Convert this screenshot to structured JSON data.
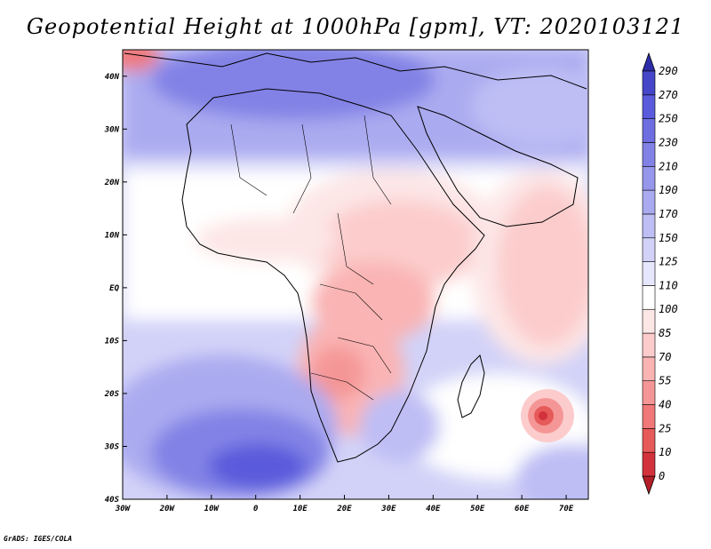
{
  "title": "Geopotential Height at 1000hPa [gpm], VT: 2020103121",
  "credit": "GrADS: IGES/COLA",
  "map": {
    "lon_range": [
      -30,
      75
    ],
    "lat_range": [
      -40,
      45
    ],
    "lon_ticks": [
      {
        "value": -30,
        "label": "30W"
      },
      {
        "value": -20,
        "label": "20W"
      },
      {
        "value": -10,
        "label": "10W"
      },
      {
        "value": 0,
        "label": "0"
      },
      {
        "value": 10,
        "label": "10E"
      },
      {
        "value": 20,
        "label": "20E"
      },
      {
        "value": 30,
        "label": "30E"
      },
      {
        "value": 40,
        "label": "40E"
      },
      {
        "value": 50,
        "label": "50E"
      },
      {
        "value": 60,
        "label": "60E"
      },
      {
        "value": 70,
        "label": "70E"
      }
    ],
    "lat_ticks": [
      {
        "value": 40,
        "label": "40N"
      },
      {
        "value": 30,
        "label": "30N"
      },
      {
        "value": 20,
        "label": "20N"
      },
      {
        "value": 10,
        "label": "10N"
      },
      {
        "value": 0,
        "label": "EQ"
      },
      {
        "value": -10,
        "label": "10S"
      },
      {
        "value": -20,
        "label": "20S"
      },
      {
        "value": -30,
        "label": "30S"
      },
      {
        "value": -40,
        "label": "40S"
      }
    ]
  },
  "colorbar": {
    "levels": [
      "0",
      "10",
      "25",
      "40",
      "55",
      "70",
      "85",
      "100",
      "110",
      "125",
      "150",
      "170",
      "190",
      "210",
      "230",
      "250",
      "270",
      "290"
    ],
    "colors": [
      "#b41e28",
      "#d2323c",
      "#e65a5a",
      "#f07878",
      "#f59696",
      "#fab4b4",
      "#fccccc",
      "#fde6e6",
      "#ffffff",
      "#e6e6fc",
      "#d2d2f8",
      "#bebef5",
      "#aaaaf0",
      "#9696eb",
      "#8282e6",
      "#6e6ee1",
      "#5a5adc",
      "#4646c8",
      "#2d2daa"
    ]
  },
  "field": {
    "description_levels_unit": "gpm",
    "features": [
      {
        "name": "low-mozambique-channel-east",
        "lon": 64.5,
        "lat": -24.5,
        "value": 10
      },
      {
        "name": "low-namibia",
        "lon": 20,
        "lat": -17,
        "value": 55
      },
      {
        "name": "high-south-atlantic",
        "lon": 3,
        "lat": -35,
        "value": 270
      },
      {
        "name": "high-mediterranean",
        "lon": 5,
        "lat": 40,
        "value": 230
      }
    ]
  }
}
